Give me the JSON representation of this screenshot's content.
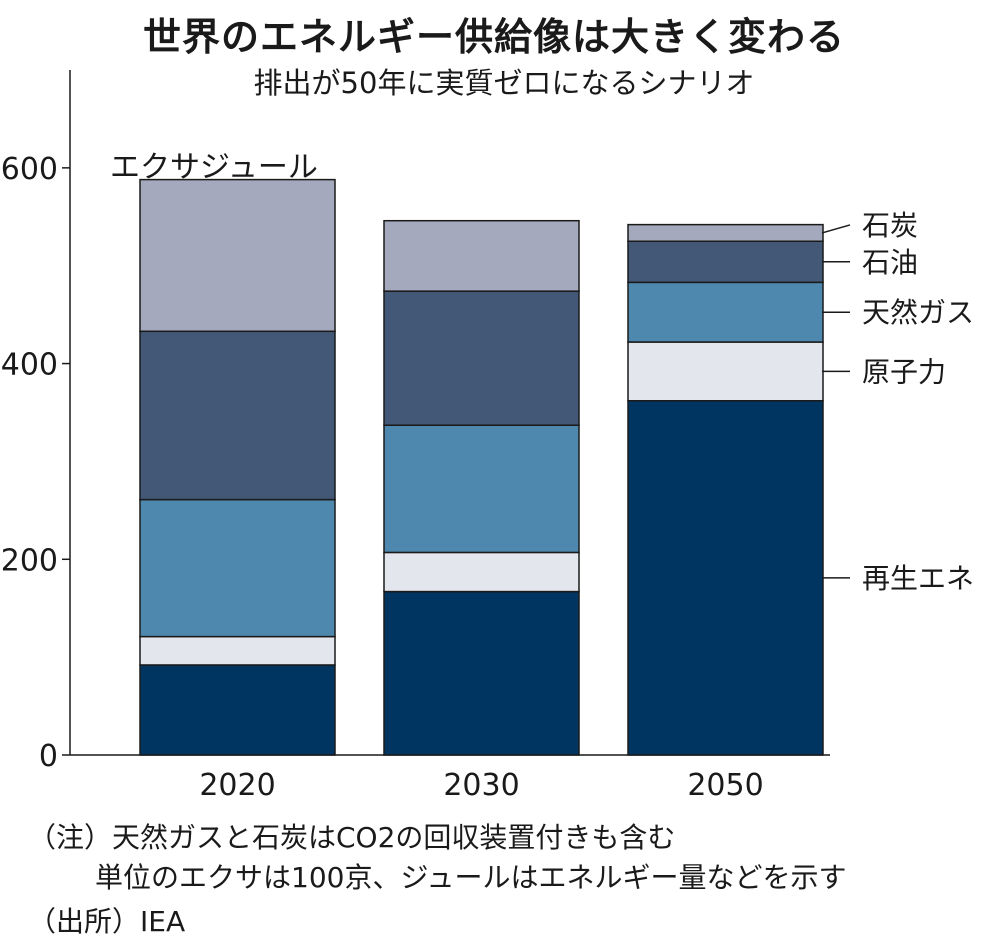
{
  "title": "世界のエネルギー供給像は大きく変わる",
  "subtitle": "排出が50年に実質ゼロになるシナリオ",
  "notes": [
    "（注）天然ガスと石炭はCO2の回収装置付きも含む",
    "単位のエクサは100京、ジュールはエネルギー量などを示す",
    "（出所）IEA"
  ],
  "chart_data": {
    "type": "bar",
    "stacked": true,
    "unit_label": "エクサジュール",
    "categories": [
      "2020",
      "2030",
      "2050"
    ],
    "ylim": [
      0,
      700
    ],
    "yticks": [
      0,
      200,
      400,
      600
    ],
    "legend_placement": "right",
    "series": [
      {
        "name": "再生エネ",
        "color": "#003461",
        "values": [
          92,
          167,
          362
        ]
      },
      {
        "name": "原子力",
        "color": "#e4e6ee",
        "values": [
          29,
          40,
          60
        ]
      },
      {
        "name": "天然ガス",
        "color": "#4e88ae",
        "values": [
          140,
          130,
          61
        ]
      },
      {
        "name": "石油",
        "color": "#435876",
        "values": [
          172,
          137,
          42
        ]
      },
      {
        "name": "石炭",
        "color": "#a5a9bd",
        "values": [
          155,
          72,
          17
        ]
      }
    ]
  }
}
